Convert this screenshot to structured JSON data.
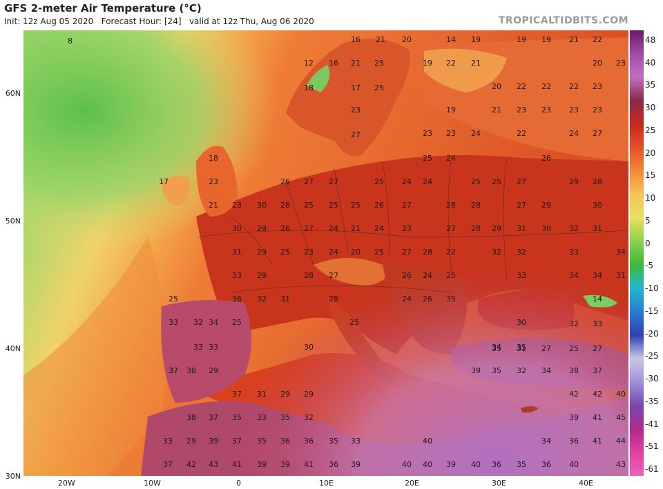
{
  "header": {
    "title": "GFS 2-meter Air Temperature (°C)",
    "subtitle": "Init: 12z Aug 05 2020   Forecast Hour: [24]   valid at 12z Thu, Aug 06 2020",
    "brand": "TROPICALTIDBITS.COM"
  },
  "map": {
    "latitude_labels": [
      "60N",
      "50N",
      "40N",
      "30N"
    ],
    "longitude_labels": [
      "20W",
      "10W",
      "0",
      "10E",
      "20E",
      "30E",
      "40E"
    ],
    "temperature_values": [
      {
        "id": "t-ne-1",
        "value": "16"
      },
      {
        "id": "t-ne-2",
        "value": "21"
      },
      {
        "id": "t-ne-3",
        "value": "20"
      },
      {
        "id": "t-iceland",
        "value": "8"
      },
      {
        "id": "t-norway-1",
        "value": "12"
      },
      {
        "id": "t-norway-2",
        "value": "16"
      },
      {
        "id": "t-norway-3",
        "value": "21"
      },
      {
        "id": "t-norway-4",
        "value": "25"
      },
      {
        "id": "t-norway-5",
        "value": "18"
      },
      {
        "id": "t-norway-6",
        "value": "17"
      },
      {
        "id": "t-sweden-1",
        "value": "25"
      },
      {
        "id": "t-sweden-2",
        "value": "23"
      },
      {
        "id": "t-sweden-3",
        "value": "27"
      },
      {
        "id": "t-fin-1",
        "value": "14"
      },
      {
        "id": "t-fin-2",
        "value": "19"
      },
      {
        "id": "t-fin-3",
        "value": "19"
      },
      {
        "id": "t-fin-4",
        "value": "19"
      },
      {
        "id": "t-fin-5",
        "value": "21"
      },
      {
        "id": "t-fin-6",
        "value": "22"
      },
      {
        "id": "t-fin-7",
        "value": "19"
      },
      {
        "id": "t-fin-8",
        "value": "22"
      },
      {
        "id": "t-fin-9",
        "value": "21"
      },
      {
        "id": "t-rus-1",
        "value": "20"
      },
      {
        "id": "t-rus-2",
        "value": "22"
      },
      {
        "id": "t-rus-3",
        "value": "22"
      },
      {
        "id": "t-rus-4",
        "value": "22"
      },
      {
        "id": "t-rus-5",
        "value": "23"
      },
      {
        "id": "t-rus-6",
        "value": "19"
      },
      {
        "id": "t-rus-7",
        "value": "21"
      },
      {
        "id": "t-rus-8",
        "value": "23"
      },
      {
        "id": "t-rus-9",
        "value": "23"
      },
      {
        "id": "t-rus-10",
        "value": "23"
      },
      {
        "id": "t-rus-11",
        "value": "23"
      },
      {
        "id": "t-rus-12",
        "value": "20"
      },
      {
        "id": "t-rus-13",
        "value": "23"
      },
      {
        "id": "t-balt-1",
        "value": "23"
      },
      {
        "id": "t-balt-2",
        "value": "23"
      },
      {
        "id": "t-balt-3",
        "value": "24"
      },
      {
        "id": "t-balt-4",
        "value": "22"
      },
      {
        "id": "t-balt-5",
        "value": "24"
      },
      {
        "id": "t-balt-6",
        "value": "27"
      },
      {
        "id": "t-uk-1",
        "value": "18"
      },
      {
        "id": "t-uk-2",
        "value": "17"
      },
      {
        "id": "t-uk-3",
        "value": "23"
      },
      {
        "id": "t-uk-4",
        "value": "21"
      },
      {
        "id": "t-uk-5",
        "value": "23"
      },
      {
        "id": "t-pol-1",
        "value": "25"
      },
      {
        "id": "t-pol-2",
        "value": "24"
      },
      {
        "id": "t-pol-3",
        "value": "25"
      },
      {
        "id": "t-pol-4",
        "value": "25"
      },
      {
        "id": "t-pol-5",
        "value": "27"
      },
      {
        "id": "t-pol-6",
        "value": "26"
      },
      {
        "id": "t-pol-7",
        "value": "29"
      },
      {
        "id": "t-pol-8",
        "value": "28"
      },
      {
        "id": "t-de-1",
        "value": "26"
      },
      {
        "id": "t-de-2",
        "value": "27"
      },
      {
        "id": "t-de-3",
        "value": "27"
      },
      {
        "id": "t-de-4",
        "value": "25"
      },
      {
        "id": "t-de-5",
        "value": "24"
      },
      {
        "id": "t-de-6",
        "value": "24"
      },
      {
        "id": "t-fr-1",
        "value": "30"
      },
      {
        "id": "t-fr-2",
        "value": "28"
      },
      {
        "id": "t-fr-3",
        "value": "25"
      },
      {
        "id": "t-fr-4",
        "value": "25"
      },
      {
        "id": "t-fr-5",
        "value": "25"
      },
      {
        "id": "t-fr-6",
        "value": "26"
      },
      {
        "id": "t-fr-7",
        "value": "27"
      },
      {
        "id": "t-fr-8",
        "value": "28"
      },
      {
        "id": "t-fr-9",
        "value": "28"
      },
      {
        "id": "t-fr-10",
        "value": "27"
      },
      {
        "id": "t-fr-11",
        "value": "29"
      },
      {
        "id": "t-fr-12",
        "value": "30"
      },
      {
        "id": "t-c-1",
        "value": "30"
      },
      {
        "id": "t-c-2",
        "value": "29"
      },
      {
        "id": "t-c-3",
        "value": "26"
      },
      {
        "id": "t-c-4",
        "value": "27"
      },
      {
        "id": "t-c-5",
        "value": "24"
      },
      {
        "id": "t-c-6",
        "value": "21"
      },
      {
        "id": "t-c-7",
        "value": "24"
      },
      {
        "id": "t-c-8",
        "value": "23"
      },
      {
        "id": "t-c-9",
        "value": "27"
      },
      {
        "id": "t-c-10",
        "value": "28"
      },
      {
        "id": "t-c-11",
        "value": "29"
      },
      {
        "id": "t-c-12",
        "value": "31"
      },
      {
        "id": "t-c-13",
        "value": "30"
      },
      {
        "id": "t-c-14",
        "value": "32"
      },
      {
        "id": "t-c-15",
        "value": "31"
      },
      {
        "id": "t-f2-1",
        "value": "31"
      },
      {
        "id": "t-f2-2",
        "value": "29"
      },
      {
        "id": "t-f2-3",
        "value": "25"
      },
      {
        "id": "t-f2-4",
        "value": "23"
      },
      {
        "id": "t-f2-5",
        "value": "24"
      },
      {
        "id": "t-f2-6",
        "value": "20"
      },
      {
        "id": "t-f2-7",
        "value": "25"
      },
      {
        "id": "t-f2-8",
        "value": "27"
      },
      {
        "id": "t-f2-9",
        "value": "28"
      },
      {
        "id": "t-f2-10",
        "value": "22"
      },
      {
        "id": "t-f2-11",
        "value": "32"
      },
      {
        "id": "t-f2-12",
        "value": "32"
      },
      {
        "id": "t-f2-13",
        "value": "33"
      },
      {
        "id": "t-f2-14",
        "value": "34"
      },
      {
        "id": "t-s-1",
        "value": "33"
      },
      {
        "id": "t-s-2",
        "value": "29"
      },
      {
        "id": "t-s-3",
        "value": "28"
      },
      {
        "id": "t-s-4",
        "value": "27"
      },
      {
        "id": "t-s-5",
        "value": "26"
      },
      {
        "id": "t-s-6",
        "value": "24"
      },
      {
        "id": "t-s-7",
        "value": "25"
      },
      {
        "id": "t-s-8",
        "value": "33"
      },
      {
        "id": "t-s-9",
        "value": "34"
      },
      {
        "id": "t-s-10",
        "value": "34"
      },
      {
        "id": "t-s-11",
        "value": "31"
      },
      {
        "id": "t-ib-1",
        "value": "25"
      },
      {
        "id": "t-ib-2",
        "value": "36"
      },
      {
        "id": "t-ib-3",
        "value": "32"
      },
      {
        "id": "t-ib-4",
        "value": "31"
      },
      {
        "id": "t-ib-5",
        "value": "28"
      },
      {
        "id": "t-ib-6",
        "value": "24"
      },
      {
        "id": "t-ib-7",
        "value": "26"
      },
      {
        "id": "t-ib-8",
        "value": "35"
      },
      {
        "id": "t-ib-9",
        "value": "14"
      },
      {
        "id": "t-ib-10",
        "value": "33"
      },
      {
        "id": "t-ib-11",
        "value": "32"
      },
      {
        "id": "t-ib-12",
        "value": "34"
      },
      {
        "id": "t-ib-13",
        "value": "25"
      },
      {
        "id": "t-ib-14",
        "value": "25"
      },
      {
        "id": "t-ib-15",
        "value": "30"
      },
      {
        "id": "t-ib-16",
        "value": "33"
      },
      {
        "id": "t-ib-17",
        "value": "34"
      },
      {
        "id": "t-ib-18",
        "value": "35"
      },
      {
        "id": "t-ib-19",
        "value": "37"
      },
      {
        "id": "t-ib-20",
        "value": "33"
      },
      {
        "id": "t-ib-21",
        "value": "30"
      },
      {
        "id": "t-ib-22",
        "value": "37"
      },
      {
        "id": "t-ib-23",
        "value": "38"
      },
      {
        "id": "t-ib-24",
        "value": "29"
      },
      {
        "id": "t-ib-25",
        "value": "39"
      },
      {
        "id": "t-ib-26",
        "value": "35"
      },
      {
        "id": "t-ib-27",
        "value": "32"
      },
      {
        "id": "t-ib-28",
        "value": "34"
      },
      {
        "id": "t-ib-29",
        "value": "38"
      },
      {
        "id": "t-ib-30",
        "value": "37"
      },
      {
        "id": "t-tr-1",
        "value": "35"
      },
      {
        "id": "t-tr-2",
        "value": "31"
      },
      {
        "id": "t-tr-3",
        "value": "27"
      },
      {
        "id": "t-tr-4",
        "value": "25"
      },
      {
        "id": "t-tr-5",
        "value": "27"
      },
      {
        "id": "t-tr-6",
        "value": "32"
      },
      {
        "id": "t-tr-7",
        "value": "33"
      },
      {
        "id": "t-af-1",
        "value": "37"
      },
      {
        "id": "t-af-2",
        "value": "31"
      },
      {
        "id": "t-af-3",
        "value": "29"
      },
      {
        "id": "t-af-4",
        "value": "29"
      },
      {
        "id": "t-af-5",
        "value": "42"
      },
      {
        "id": "t-af-6",
        "value": "42"
      },
      {
        "id": "t-af-7",
        "value": "40"
      },
      {
        "id": "t-af-8",
        "value": "38"
      },
      {
        "id": "t-af-9",
        "value": "37"
      },
      {
        "id": "t-af-10",
        "value": "35"
      },
      {
        "id": "t-af-11",
        "value": "33"
      },
      {
        "id": "t-af-12",
        "value": "35"
      },
      {
        "id": "t-af-13",
        "value": "32"
      },
      {
        "id": "t-af-14",
        "value": "39"
      },
      {
        "id": "t-af-15",
        "value": "41"
      },
      {
        "id": "t-af-16",
        "value": "45"
      },
      {
        "id": "t-af-17",
        "value": "33"
      },
      {
        "id": "t-af-18",
        "value": "29"
      },
      {
        "id": "t-af-19",
        "value": "39"
      },
      {
        "id": "t-af-20",
        "value": "37"
      },
      {
        "id": "t-af-21",
        "value": "35"
      },
      {
        "id": "t-af-22",
        "value": "36"
      },
      {
        "id": "t-af-23",
        "value": "36"
      },
      {
        "id": "t-af-24",
        "value": "35"
      },
      {
        "id": "t-af-25",
        "value": "33"
      },
      {
        "id": "t-af-26",
        "value": "40"
      },
      {
        "id": "t-af-27",
        "value": "34"
      },
      {
        "id": "t-af-28",
        "value": "36"
      },
      {
        "id": "t-af-29",
        "value": "41"
      },
      {
        "id": "t-af-30",
        "value": "44"
      },
      {
        "id": "t-af-31",
        "value": "37"
      },
      {
        "id": "t-af-32",
        "value": "42"
      },
      {
        "id": "t-af-33",
        "value": "43"
      },
      {
        "id": "t-af-34",
        "value": "41"
      },
      {
        "id": "t-af-35",
        "value": "39"
      },
      {
        "id": "t-af-36",
        "value": "39"
      },
      {
        "id": "t-af-37",
        "value": "41"
      },
      {
        "id": "t-af-38",
        "value": "36"
      },
      {
        "id": "t-af-39",
        "value": "39"
      },
      {
        "id": "t-af-40",
        "value": "40"
      },
      {
        "id": "t-af-41",
        "value": "40"
      },
      {
        "id": "t-af-42",
        "value": "39"
      },
      {
        "id": "t-af-43",
        "value": "40"
      },
      {
        "id": "t-af-44",
        "value": "36"
      },
      {
        "id": "t-af-45",
        "value": "35"
      },
      {
        "id": "t-af-46",
        "value": "36"
      },
      {
        "id": "t-af-47",
        "value": "40"
      },
      {
        "id": "t-af-48",
        "value": "43"
      }
    ]
  },
  "colorbar": {
    "ticks": [
      "48",
      "40",
      "35",
      "30",
      "25",
      "20",
      "15",
      "10",
      "5",
      "0",
      "-5",
      "-10",
      "-15",
      "-20",
      "-25",
      "-30",
      "-35",
      "-41",
      "-51",
      "-61"
    ],
    "colors": [
      "#6a1a6a",
      "#a24aa8",
      "#c070c0",
      "#8a2a4a",
      "#c62a1a",
      "#e4502a",
      "#f08a3a",
      "#f6c45a",
      "#e8e060",
      "#8cd050",
      "#3cb83c",
      "#20b8d0",
      "#2a7ad0",
      "#3040b0",
      "#c8c8e8",
      "#a090d8",
      "#7848b0",
      "#b02a8a",
      "#e040a0",
      "#f060c0"
    ]
  }
}
